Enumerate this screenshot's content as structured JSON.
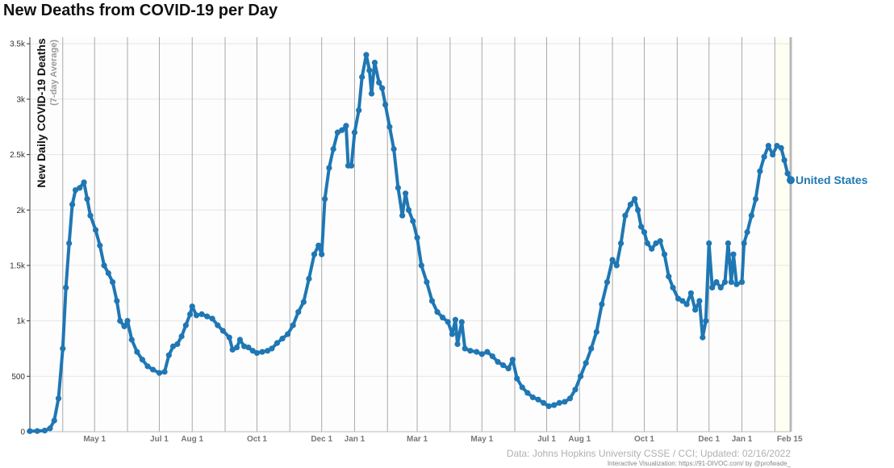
{
  "title": "New Deaths from COVID-19 per Day",
  "chart_data": {
    "type": "line",
    "ylabel": "New Daily COVID-19 Deaths",
    "ylabel_sub": "(7-day Average)",
    "yticks": [
      0,
      500,
      1000,
      1500,
      2000,
      2500,
      3000,
      3500
    ],
    "ytick_labels": [
      "0",
      "500",
      "1k",
      "1.5k",
      "2k",
      "2.5k",
      "3k",
      "3.5k"
    ],
    "ylim": [
      0,
      3560
    ],
    "xlim": [
      "2020-03-01",
      "2022-02-16"
    ],
    "xtick_labels": [
      {
        "label": "May 1",
        "date": "2020-05-01"
      },
      {
        "label": "Jul 1",
        "date": "2020-07-01"
      },
      {
        "label": "Aug 1",
        "date": "2020-08-01"
      },
      {
        "label": "Oct 1",
        "date": "2020-10-01"
      },
      {
        "label": "Dec 1",
        "date": "2020-12-01"
      },
      {
        "label": "Jan 1",
        "date": "2021-01-01"
      },
      {
        "label": "Mar 1",
        "date": "2021-03-01"
      },
      {
        "label": "May 1",
        "date": "2021-05-01"
      },
      {
        "label": "Jul 1",
        "date": "2021-07-01"
      },
      {
        "label": "Aug 1",
        "date": "2021-08-01"
      },
      {
        "label": "Oct 1",
        "date": "2021-10-01"
      },
      {
        "label": "Dec 1",
        "date": "2021-12-01"
      },
      {
        "label": "Jan 1",
        "date": "2022-01-01"
      },
      {
        "label": "Feb 15",
        "date": "2022-02-15"
      }
    ],
    "month_lines": [
      "2020-04-01",
      "2020-05-01",
      "2020-06-01",
      "2020-07-01",
      "2020-08-01",
      "2020-09-01",
      "2020-10-01",
      "2020-11-01",
      "2020-12-01",
      "2021-01-01",
      "2021-02-01",
      "2021-03-01",
      "2021-04-01",
      "2021-05-01",
      "2021-06-01",
      "2021-07-01",
      "2021-08-01",
      "2021-09-01",
      "2021-10-01",
      "2021-11-01",
      "2021-12-01",
      "2022-01-01",
      "2022-02-01"
    ],
    "highlight_start": "2022-02-01",
    "series": [
      {
        "name": "United States",
        "color": "#1f77b4",
        "points": [
          [
            "2020-03-01",
            5
          ],
          [
            "2020-03-08",
            6
          ],
          [
            "2020-03-15",
            10
          ],
          [
            "2020-03-20",
            30
          ],
          [
            "2020-03-24",
            100
          ],
          [
            "2020-03-28",
            300
          ],
          [
            "2020-04-01",
            750
          ],
          [
            "2020-04-04",
            1300
          ],
          [
            "2020-04-07",
            1700
          ],
          [
            "2020-04-10",
            2050
          ],
          [
            "2020-04-13",
            2180
          ],
          [
            "2020-04-17",
            2200
          ],
          [
            "2020-04-21",
            2250
          ],
          [
            "2020-04-24",
            2100
          ],
          [
            "2020-04-27",
            1950
          ],
          [
            "2020-05-02",
            1820
          ],
          [
            "2020-05-06",
            1680
          ],
          [
            "2020-05-10",
            1500
          ],
          [
            "2020-05-14",
            1430
          ],
          [
            "2020-05-18",
            1350
          ],
          [
            "2020-05-22",
            1180
          ],
          [
            "2020-05-25",
            1000
          ],
          [
            "2020-05-29",
            950
          ],
          [
            "2020-06-01",
            1000
          ],
          [
            "2020-06-05",
            830
          ],
          [
            "2020-06-10",
            720
          ],
          [
            "2020-06-15",
            650
          ],
          [
            "2020-06-20",
            590
          ],
          [
            "2020-06-25",
            560
          ],
          [
            "2020-07-01",
            530
          ],
          [
            "2020-07-06",
            540
          ],
          [
            "2020-07-10",
            690
          ],
          [
            "2020-07-14",
            770
          ],
          [
            "2020-07-18",
            790
          ],
          [
            "2020-07-22",
            860
          ],
          [
            "2020-07-26",
            960
          ],
          [
            "2020-07-30",
            1060
          ],
          [
            "2020-08-01",
            1130
          ],
          [
            "2020-08-05",
            1050
          ],
          [
            "2020-08-10",
            1060
          ],
          [
            "2020-08-15",
            1040
          ],
          [
            "2020-08-20",
            1020
          ],
          [
            "2020-08-25",
            960
          ],
          [
            "2020-08-30",
            910
          ],
          [
            "2020-09-05",
            850
          ],
          [
            "2020-09-08",
            740
          ],
          [
            "2020-09-12",
            760
          ],
          [
            "2020-09-15",
            830
          ],
          [
            "2020-09-19",
            770
          ],
          [
            "2020-09-23",
            760
          ],
          [
            "2020-09-27",
            730
          ],
          [
            "2020-10-01",
            710
          ],
          [
            "2020-10-06",
            720
          ],
          [
            "2020-10-11",
            730
          ],
          [
            "2020-10-15",
            750
          ],
          [
            "2020-10-20",
            800
          ],
          [
            "2020-10-25",
            840
          ],
          [
            "2020-10-30",
            880
          ],
          [
            "2020-11-04",
            960
          ],
          [
            "2020-11-09",
            1080
          ],
          [
            "2020-11-14",
            1170
          ],
          [
            "2020-11-19",
            1380
          ],
          [
            "2020-11-24",
            1600
          ],
          [
            "2020-11-28",
            1680
          ],
          [
            "2020-12-01",
            1600
          ],
          [
            "2020-12-04",
            2100
          ],
          [
            "2020-12-08",
            2380
          ],
          [
            "2020-12-12",
            2550
          ],
          [
            "2020-12-16",
            2700
          ],
          [
            "2020-12-20",
            2720
          ],
          [
            "2020-12-24",
            2760
          ],
          [
            "2020-12-26",
            2400
          ],
          [
            "2020-12-29",
            2400
          ],
          [
            "2021-01-01",
            2700
          ],
          [
            "2021-01-05",
            2900
          ],
          [
            "2021-01-08",
            3200
          ],
          [
            "2021-01-12",
            3400
          ],
          [
            "2021-01-15",
            3260
          ],
          [
            "2021-01-17",
            3050
          ],
          [
            "2021-01-20",
            3330
          ],
          [
            "2021-01-24",
            3150
          ],
          [
            "2021-01-27",
            3100
          ],
          [
            "2021-01-30",
            2950
          ],
          [
            "2021-02-03",
            2750
          ],
          [
            "2021-02-07",
            2550
          ],
          [
            "2021-02-11",
            2200
          ],
          [
            "2021-02-15",
            1950
          ],
          [
            "2021-02-18",
            2150
          ],
          [
            "2021-02-21",
            2000
          ],
          [
            "2021-02-25",
            1900
          ],
          [
            "2021-03-01",
            1750
          ],
          [
            "2021-03-05",
            1500
          ],
          [
            "2021-03-10",
            1350
          ],
          [
            "2021-03-15",
            1180
          ],
          [
            "2021-03-20",
            1080
          ],
          [
            "2021-03-25",
            1030
          ],
          [
            "2021-03-30",
            990
          ],
          [
            "2021-04-03",
            880
          ],
          [
            "2021-04-06",
            1010
          ],
          [
            "2021-04-08",
            790
          ],
          [
            "2021-04-12",
            990
          ],
          [
            "2021-04-15",
            750
          ],
          [
            "2021-04-20",
            730
          ],
          [
            "2021-04-26",
            720
          ],
          [
            "2021-05-01",
            700
          ],
          [
            "2021-05-06",
            720
          ],
          [
            "2021-05-11",
            680
          ],
          [
            "2021-05-16",
            630
          ],
          [
            "2021-05-21",
            600
          ],
          [
            "2021-05-26",
            570
          ],
          [
            "2021-05-30",
            650
          ],
          [
            "2021-06-03",
            480
          ],
          [
            "2021-06-08",
            400
          ],
          [
            "2021-06-13",
            350
          ],
          [
            "2021-06-18",
            310
          ],
          [
            "2021-06-23",
            290
          ],
          [
            "2021-06-28",
            260
          ],
          [
            "2021-07-03",
            230
          ],
          [
            "2021-07-08",
            240
          ],
          [
            "2021-07-13",
            260
          ],
          [
            "2021-07-18",
            270
          ],
          [
            "2021-07-23",
            300
          ],
          [
            "2021-07-28",
            380
          ],
          [
            "2021-08-02",
            500
          ],
          [
            "2021-08-07",
            620
          ],
          [
            "2021-08-12",
            750
          ],
          [
            "2021-08-17",
            900
          ],
          [
            "2021-08-22",
            1150
          ],
          [
            "2021-08-27",
            1350
          ],
          [
            "2021-09-01",
            1550
          ],
          [
            "2021-09-05",
            1500
          ],
          [
            "2021-09-09",
            1700
          ],
          [
            "2021-09-13",
            1950
          ],
          [
            "2021-09-18",
            2050
          ],
          [
            "2021-09-22",
            2100
          ],
          [
            "2021-09-25",
            2000
          ],
          [
            "2021-09-28",
            1850
          ],
          [
            "2021-10-01",
            1800
          ],
          [
            "2021-10-04",
            1700
          ],
          [
            "2021-10-08",
            1650
          ],
          [
            "2021-10-12",
            1700
          ],
          [
            "2021-10-16",
            1720
          ],
          [
            "2021-10-20",
            1600
          ],
          [
            "2021-10-24",
            1400
          ],
          [
            "2021-10-28",
            1300
          ],
          [
            "2021-11-02",
            1200
          ],
          [
            "2021-11-06",
            1180
          ],
          [
            "2021-11-10",
            1150
          ],
          [
            "2021-11-14",
            1250
          ],
          [
            "2021-11-18",
            1100
          ],
          [
            "2021-11-22",
            1180
          ],
          [
            "2021-11-25",
            850
          ],
          [
            "2021-11-28",
            1000
          ],
          [
            "2021-12-01",
            1700
          ],
          [
            "2021-12-04",
            1300
          ],
          [
            "2021-12-08",
            1350
          ],
          [
            "2021-12-12",
            1300
          ],
          [
            "2021-12-16",
            1350
          ],
          [
            "2021-12-19",
            1700
          ],
          [
            "2021-12-22",
            1350
          ],
          [
            "2021-12-24",
            1600
          ],
          [
            "2021-12-27",
            1330
          ],
          [
            "2022-01-01",
            1350
          ],
          [
            "2022-01-03",
            1700
          ],
          [
            "2022-01-06",
            1800
          ],
          [
            "2022-01-10",
            1950
          ],
          [
            "2022-01-14",
            2100
          ],
          [
            "2022-01-18",
            2350
          ],
          [
            "2022-01-22",
            2480
          ],
          [
            "2022-01-26",
            2580
          ],
          [
            "2022-01-30",
            2500
          ],
          [
            "2022-02-03",
            2580
          ],
          [
            "2022-02-07",
            2560
          ],
          [
            "2022-02-10",
            2450
          ],
          [
            "2022-02-13",
            2330
          ],
          [
            "2022-02-16",
            2270
          ]
        ]
      }
    ]
  },
  "footer": {
    "source": "Data: Johns Hopkins University CSSE / CCI; Updated: 02/16/2022",
    "credit": "Interactive Visualization: https://91-DIVOC.com/ by @profwade_"
  }
}
